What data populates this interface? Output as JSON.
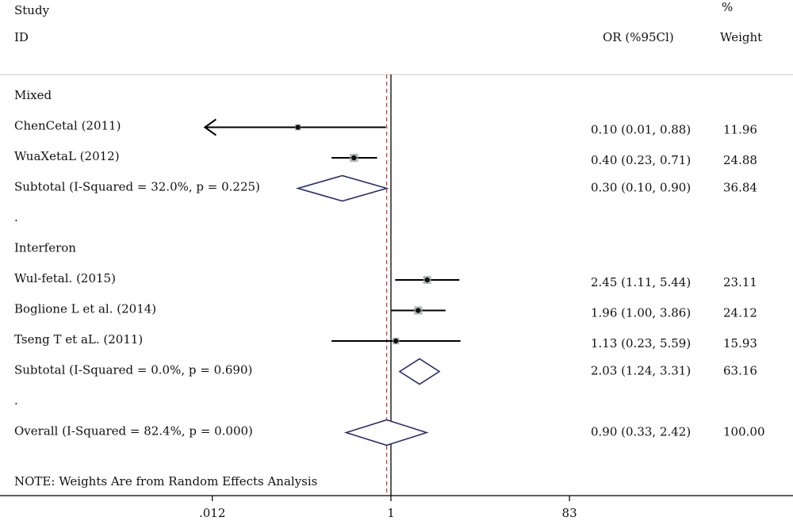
{
  "header": {
    "study_line1": "Study",
    "study_line2": "ID",
    "or_label": "OR (%95Cl)",
    "weight_line1": "%",
    "weight_line2": "Weight"
  },
  "rows": [
    {
      "kind": "group",
      "label": "Mixed"
    },
    {
      "kind": "study",
      "label": "ChenCetal (2011)",
      "or": 0.1,
      "lo": 0.01,
      "hi": 0.88,
      "ci_text": "0.10 (0.01, 0.88)",
      "weight": "11.96",
      "truncated_left": true
    },
    {
      "kind": "study",
      "label": "WuaXetaL (2012)",
      "or": 0.4,
      "lo": 0.23,
      "hi": 0.71,
      "ci_text": "0.40 (0.23, 0.71)",
      "weight": "24.88"
    },
    {
      "kind": "subtotal",
      "label": "Subtotal (I-Squared = 32.0%, p = 0.225)",
      "or": 0.3,
      "lo": 0.1,
      "hi": 0.9,
      "ci_text": "0.30 (0.10, 0.90)",
      "weight": "36.84"
    },
    {
      "kind": "spacer",
      "label": "."
    },
    {
      "kind": "group",
      "label": "Interferon"
    },
    {
      "kind": "study",
      "label": "Wul-fetal. (2015)",
      "or": 2.45,
      "lo": 1.11,
      "hi": 5.44,
      "ci_text": "2.45 (1.11, 5.44)",
      "weight": "23.11"
    },
    {
      "kind": "study",
      "label": "Boglione L et al. (2014)",
      "or": 1.96,
      "lo": 1.0,
      "hi": 3.86,
      "ci_text": "1.96 (1.00, 3.86)",
      "weight": "24.12"
    },
    {
      "kind": "study",
      "label": "Tseng T et aL. (2011)",
      "or": 1.13,
      "lo": 0.23,
      "hi": 5.59,
      "ci_text": "1.13 (0.23, 5.59)",
      "weight": "15.93"
    },
    {
      "kind": "subtotal",
      "label": "Subtotal (I-Squared = 0.0%, p = 0.690)",
      "or": 2.03,
      "lo": 1.24,
      "hi": 3.31,
      "ci_text": "2.03 (1.24, 3.31)",
      "weight": "63.16"
    },
    {
      "kind": "spacer",
      "label": "."
    },
    {
      "kind": "overall",
      "label": "Overall (I-Squared = 82.4%, p = 0.000)",
      "or": 0.9,
      "lo": 0.33,
      "hi": 2.42,
      "ci_text": "0.90 (0.33, 2.42)",
      "weight": "100.00"
    }
  ],
  "note": "NOTE: Weights Are from Random Effects Analysis",
  "chart_data": {
    "type": "forest",
    "x_scale": "log",
    "x_ticks": [
      ".012",
      "1",
      "83"
    ],
    "x_tick_values": [
      0.012,
      1,
      83
    ],
    "null_line": 1,
    "pooled_line": 0.9,
    "colors": {
      "diamond": "#2a2f6a",
      "pooled_line": "#c0392b",
      "square": "#9aa6a0",
      "line": "#000000"
    },
    "series": [
      {
        "label": "ChenCetal (2011)",
        "or": 0.1,
        "lo": 0.01,
        "hi": 0.88
      },
      {
        "label": "WuaXetaL (2012)",
        "or": 0.4,
        "lo": 0.23,
        "hi": 0.71
      },
      {
        "label": "Subtotal (I-Squared = 32.0%, p = 0.225)",
        "or": 0.3,
        "lo": 0.1,
        "hi": 0.9
      },
      {
        "label": "Wul-fetal. (2015)",
        "or": 2.45,
        "lo": 1.11,
        "hi": 5.44
      },
      {
        "label": "Boglione L et al. (2014)",
        "or": 1.96,
        "lo": 1.0,
        "hi": 3.86
      },
      {
        "label": "Tseng T et aL. (2011)",
        "or": 1.13,
        "lo": 0.23,
        "hi": 5.59
      },
      {
        "label": "Subtotal (I-Squared = 0.0%, p = 0.690)",
        "or": 2.03,
        "lo": 1.24,
        "hi": 3.31
      },
      {
        "label": "Overall (I-Squared = 82.4%, p = 0.000)",
        "or": 0.9,
        "lo": 0.33,
        "hi": 2.42
      }
    ]
  }
}
